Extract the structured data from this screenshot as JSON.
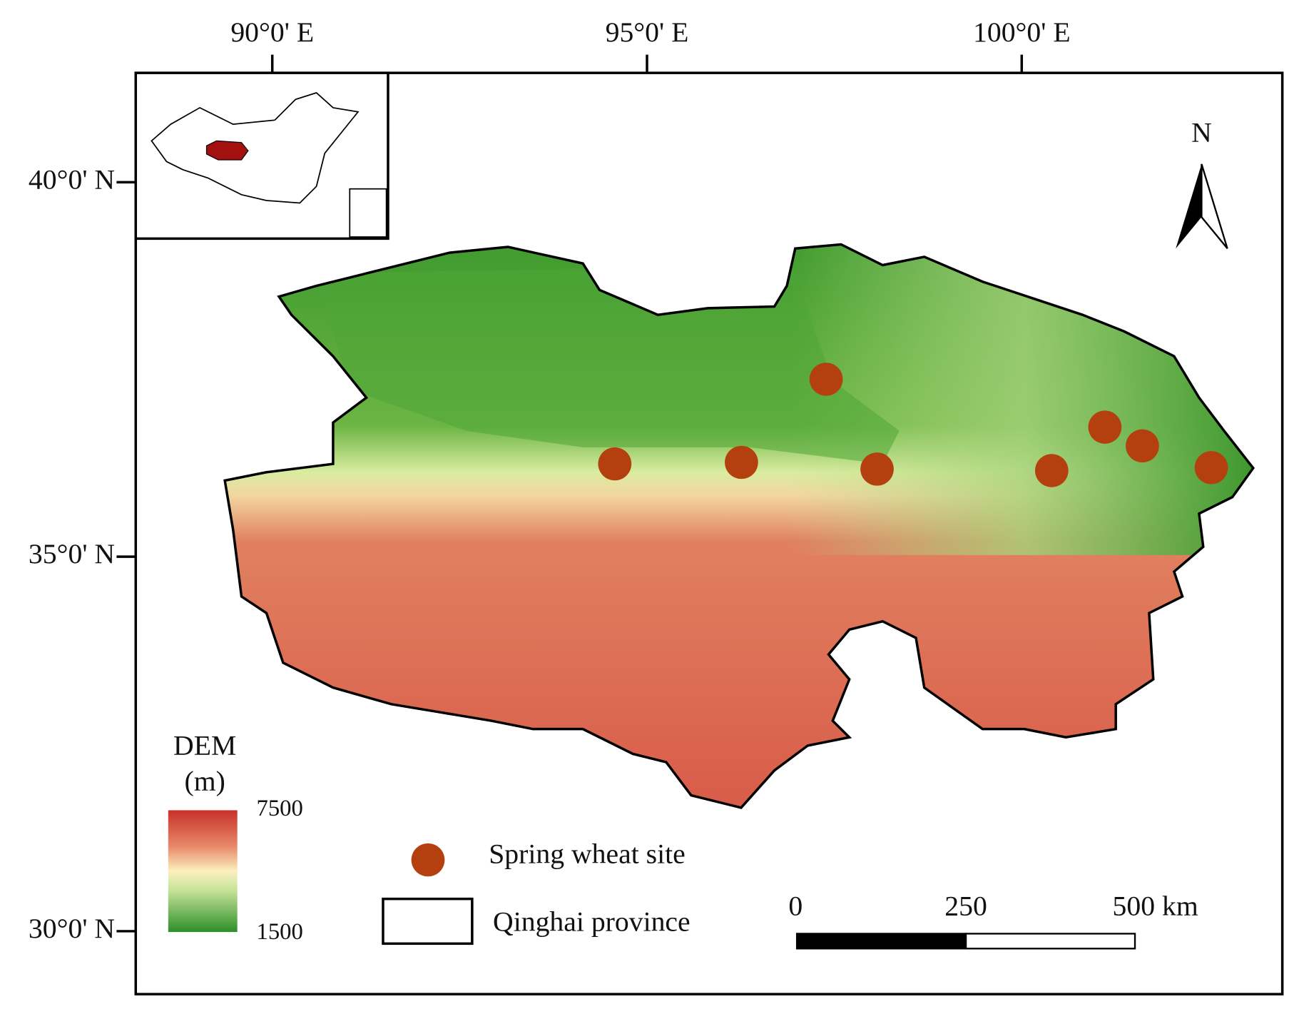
{
  "map": {
    "xticks": [
      {
        "value": 90,
        "label": "90°0' E"
      },
      {
        "value": 95,
        "label": "95°0' E"
      },
      {
        "value": 100,
        "label": "100°0' E"
      }
    ],
    "yticks": [
      {
        "value": 40,
        "label": "40°0' N"
      },
      {
        "value": 35,
        "label": "35°0' N"
      },
      {
        "value": 30,
        "label": "30°0' N"
      }
    ],
    "north_label": "N",
    "legend": {
      "dem_title": "DEM",
      "dem_unit": "(m)",
      "dem_max": 7500,
      "dem_min": 1500,
      "site_label": "Spring wheat site",
      "province_label": "Qinghai province"
    },
    "scale_bar": {
      "ticks": [
        0,
        250,
        {
          "value": 500,
          "label": "500 km"
        }
      ]
    },
    "sites": {
      "color": "#b5400f",
      "lon": [
        94.57,
        96.26,
        97.39,
        98.07,
        100.4,
        101.11,
        101.61,
        102.53
      ],
      "lat": [
        36.24,
        36.26,
        37.37,
        36.17,
        36.15,
        36.73,
        36.48,
        36.19
      ]
    }
  }
}
